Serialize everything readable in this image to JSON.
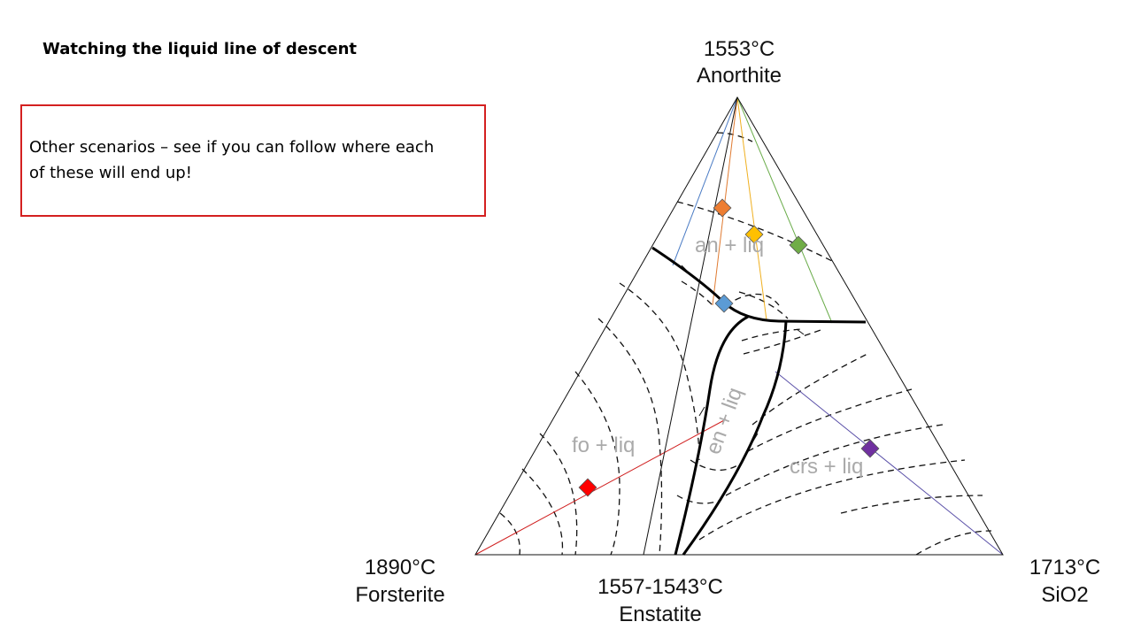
{
  "header": {
    "title": "Watching the liquid line of descent"
  },
  "note": {
    "lines": [
      "Other scenarios – see if you can follow where each",
      "of these will end up!"
    ]
  },
  "diagram": {
    "vertices": [
      {
        "temperature": "1553°C",
        "name": "Anorthite"
      },
      {
        "temperature": "1890°C",
        "name": "Forsterite"
      },
      {
        "temperature": "1557-1543°C",
        "name": "Enstatite"
      },
      {
        "temperature": "1713°C",
        "name": "SiO2"
      }
    ],
    "fields": [
      "an + liq",
      "fo + liq",
      "en + liq",
      "crs + liq"
    ]
  }
}
